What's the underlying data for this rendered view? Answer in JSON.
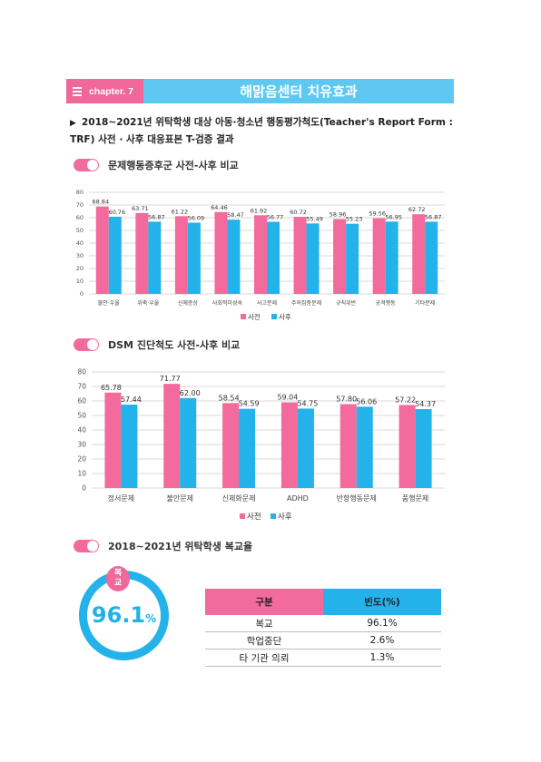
{
  "header": {
    "chapter_label": "chapter. 7",
    "title": "해맑음센터 치유효과"
  },
  "intro": {
    "marker": "▶",
    "text_line1": "2018~2021년 위탁학생 대상 아동·청소년 행동평가척도(Teacher's Report Form :",
    "text_line2": "TRF) 사전 · 사후 대응표본 T-검증 결과"
  },
  "sections": {
    "s1": "문제행동증후군 사전-사후 비교",
    "s2": "DSM 진단척도 사전-사후 비교",
    "s3": "2018~2021년 위탁학생 복교율"
  },
  "colors": {
    "pink": "#f26b9c",
    "blue": "#23b2ea",
    "grid": "#d9d9d9"
  },
  "chart_data": [
    {
      "type": "bar",
      "categories": [
        "불안·우울",
        "위축·우울",
        "신체증상",
        "사회적미성숙",
        "사고문제",
        "주의집중문제",
        "규칙위반",
        "공격행동",
        "기타문제"
      ],
      "series": [
        {
          "name": "사전",
          "values": [
            68.84,
            63.71,
            61.22,
            64.46,
            61.92,
            60.72,
            58.96,
            59.56,
            62.72
          ],
          "labels": [
            "68.84",
            "63.71",
            "61.22",
            "64.46",
            "61.92",
            "60.72",
            "58.96",
            "59.56",
            "62.72"
          ]
        },
        {
          "name": "사후",
          "values": [
            60.76,
            56.87,
            56.09,
            58.47,
            56.77,
            55.49,
            55.23,
            56.95,
            56.87
          ],
          "labels": [
            "60.76",
            "56.87",
            "56.09",
            "58.47",
            "56.77",
            "55.49",
            "55.23",
            "56.95",
            "56.87"
          ]
        }
      ],
      "ylim": [
        0,
        80
      ],
      "yticks": [
        "0",
        "10",
        "20",
        "30",
        "40",
        "50",
        "60",
        "70",
        "80"
      ],
      "grid": true,
      "legend": "bottom"
    },
    {
      "type": "bar",
      "categories": [
        "정서문제",
        "불안문제",
        "신체화문제",
        "ADHD",
        "반항행동문제",
        "품행문제"
      ],
      "series": [
        {
          "name": "사전",
          "values": [
            65.78,
            71.77,
            58.54,
            59.04,
            57.8,
            57.22
          ],
          "labels": [
            "65.78",
            "71.77",
            "58.54",
            "59.04",
            "57.80",
            "57.22"
          ]
        },
        {
          "name": "사후",
          "values": [
            57.44,
            62.0,
            54.59,
            54.75,
            56.06,
            54.37
          ],
          "labels": [
            "57.44",
            "62.00",
            "54.59",
            "54.75",
            "56.06",
            "54.37"
          ]
        }
      ],
      "ylim": [
        0,
        80
      ],
      "yticks": [
        "0",
        "10",
        "20",
        "30",
        "40",
        "50",
        "60",
        "70",
        "80"
      ],
      "grid": true,
      "legend": "bottom"
    }
  ],
  "return_rate": {
    "badge_line1": "복",
    "badge_line2": "교",
    "value": "96.1",
    "unit": "%",
    "fraction": 0.961
  },
  "table": {
    "headers": [
      "구분",
      "빈도(%)"
    ],
    "rows": [
      [
        "복교",
        "96.1%"
      ],
      [
        "학업중단",
        "2.6%"
      ],
      [
        "타 기관 의뢰",
        "1.3%"
      ]
    ]
  }
}
